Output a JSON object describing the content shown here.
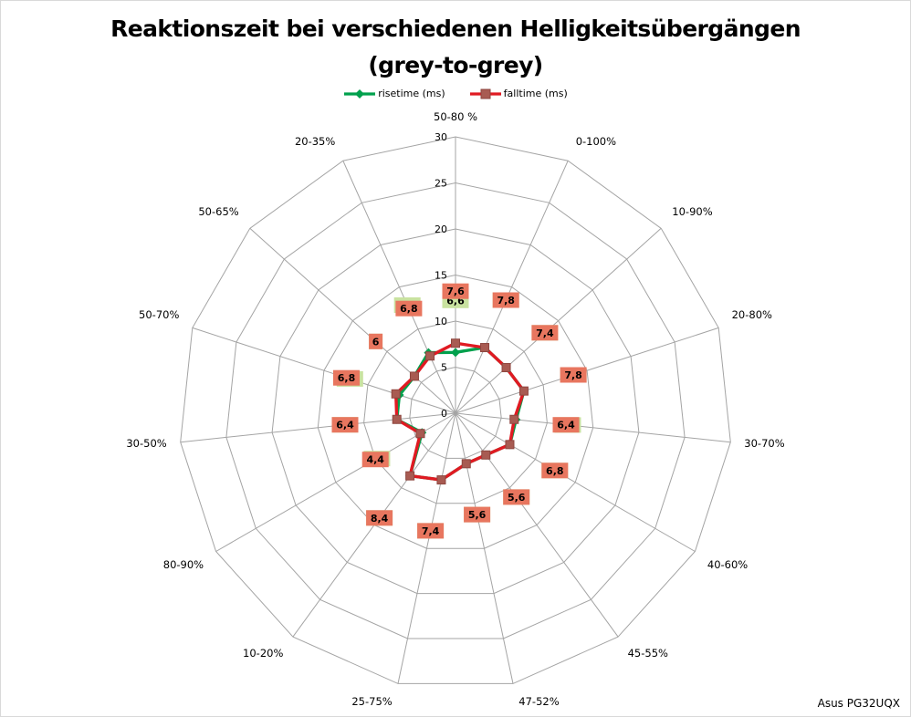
{
  "title": {
    "line1": "Reaktionszeit bei verschiedenen Helligkeitsübergängen",
    "line2": "(grey-to-grey)"
  },
  "watermark": "Asus PG32UQX",
  "chart_data": {
    "type": "radar",
    "title": "Reaktionszeit bei verschiedenen Helligkeitsübergängen (grey-to-grey)",
    "legend_position": "top",
    "grid": {
      "visible": true,
      "color": "#a4a4a4",
      "shape": "polygon"
    },
    "r_axis": {
      "min": 0,
      "max": 30,
      "step": 5,
      "tick_labels": [
        "0",
        "5",
        "10",
        "15",
        "20",
        "25",
        "30"
      ]
    },
    "categories": [
      "50-80 %",
      "0-100%",
      "10-90%",
      "20-80%",
      "30-70%",
      "40-60%",
      "45-55%",
      "47-52%",
      "25-75%",
      "10-20%",
      "80-90%",
      "30-50%",
      "50-70%",
      "50-65%",
      "20-35%"
    ],
    "series": [
      {
        "name": "risetime (ms)",
        "color": "#00A04C",
        "marker": "diamond",
        "marker_fill": "#00A04C",
        "label_bg": "#C9E2A0",
        "values": [
          6.6,
          7.8,
          7.4,
          7.8,
          6.6,
          6.8,
          5.6,
          5.6,
          7.4,
          8.4,
          4.2,
          6.4,
          6.4,
          6.0,
          7.2
        ],
        "labels": [
          "6,6",
          "7,8",
          "7,4",
          "7,8",
          "6,6",
          "6,8",
          "5,6",
          "5,6",
          "7,4",
          "8,4",
          "4,2",
          "6,4",
          "6,4",
          "6",
          "7,2"
        ]
      },
      {
        "name": "falltime (ms)",
        "color": "#E01A22",
        "marker": "square",
        "marker_fill": "#A85B52",
        "label_bg": "#E8765F",
        "values": [
          7.6,
          7.8,
          7.4,
          7.8,
          6.4,
          6.8,
          5.6,
          5.6,
          7.4,
          8.4,
          4.4,
          6.4,
          6.8,
          6.0,
          6.8
        ],
        "labels": [
          "7,6",
          "7,8",
          "7,4",
          "7,8",
          "6,4",
          "6,8",
          "5,6",
          "5,6",
          "7,4",
          "8,4",
          "4,4",
          "6,4",
          "6,8",
          "6",
          "6,8"
        ]
      }
    ]
  }
}
